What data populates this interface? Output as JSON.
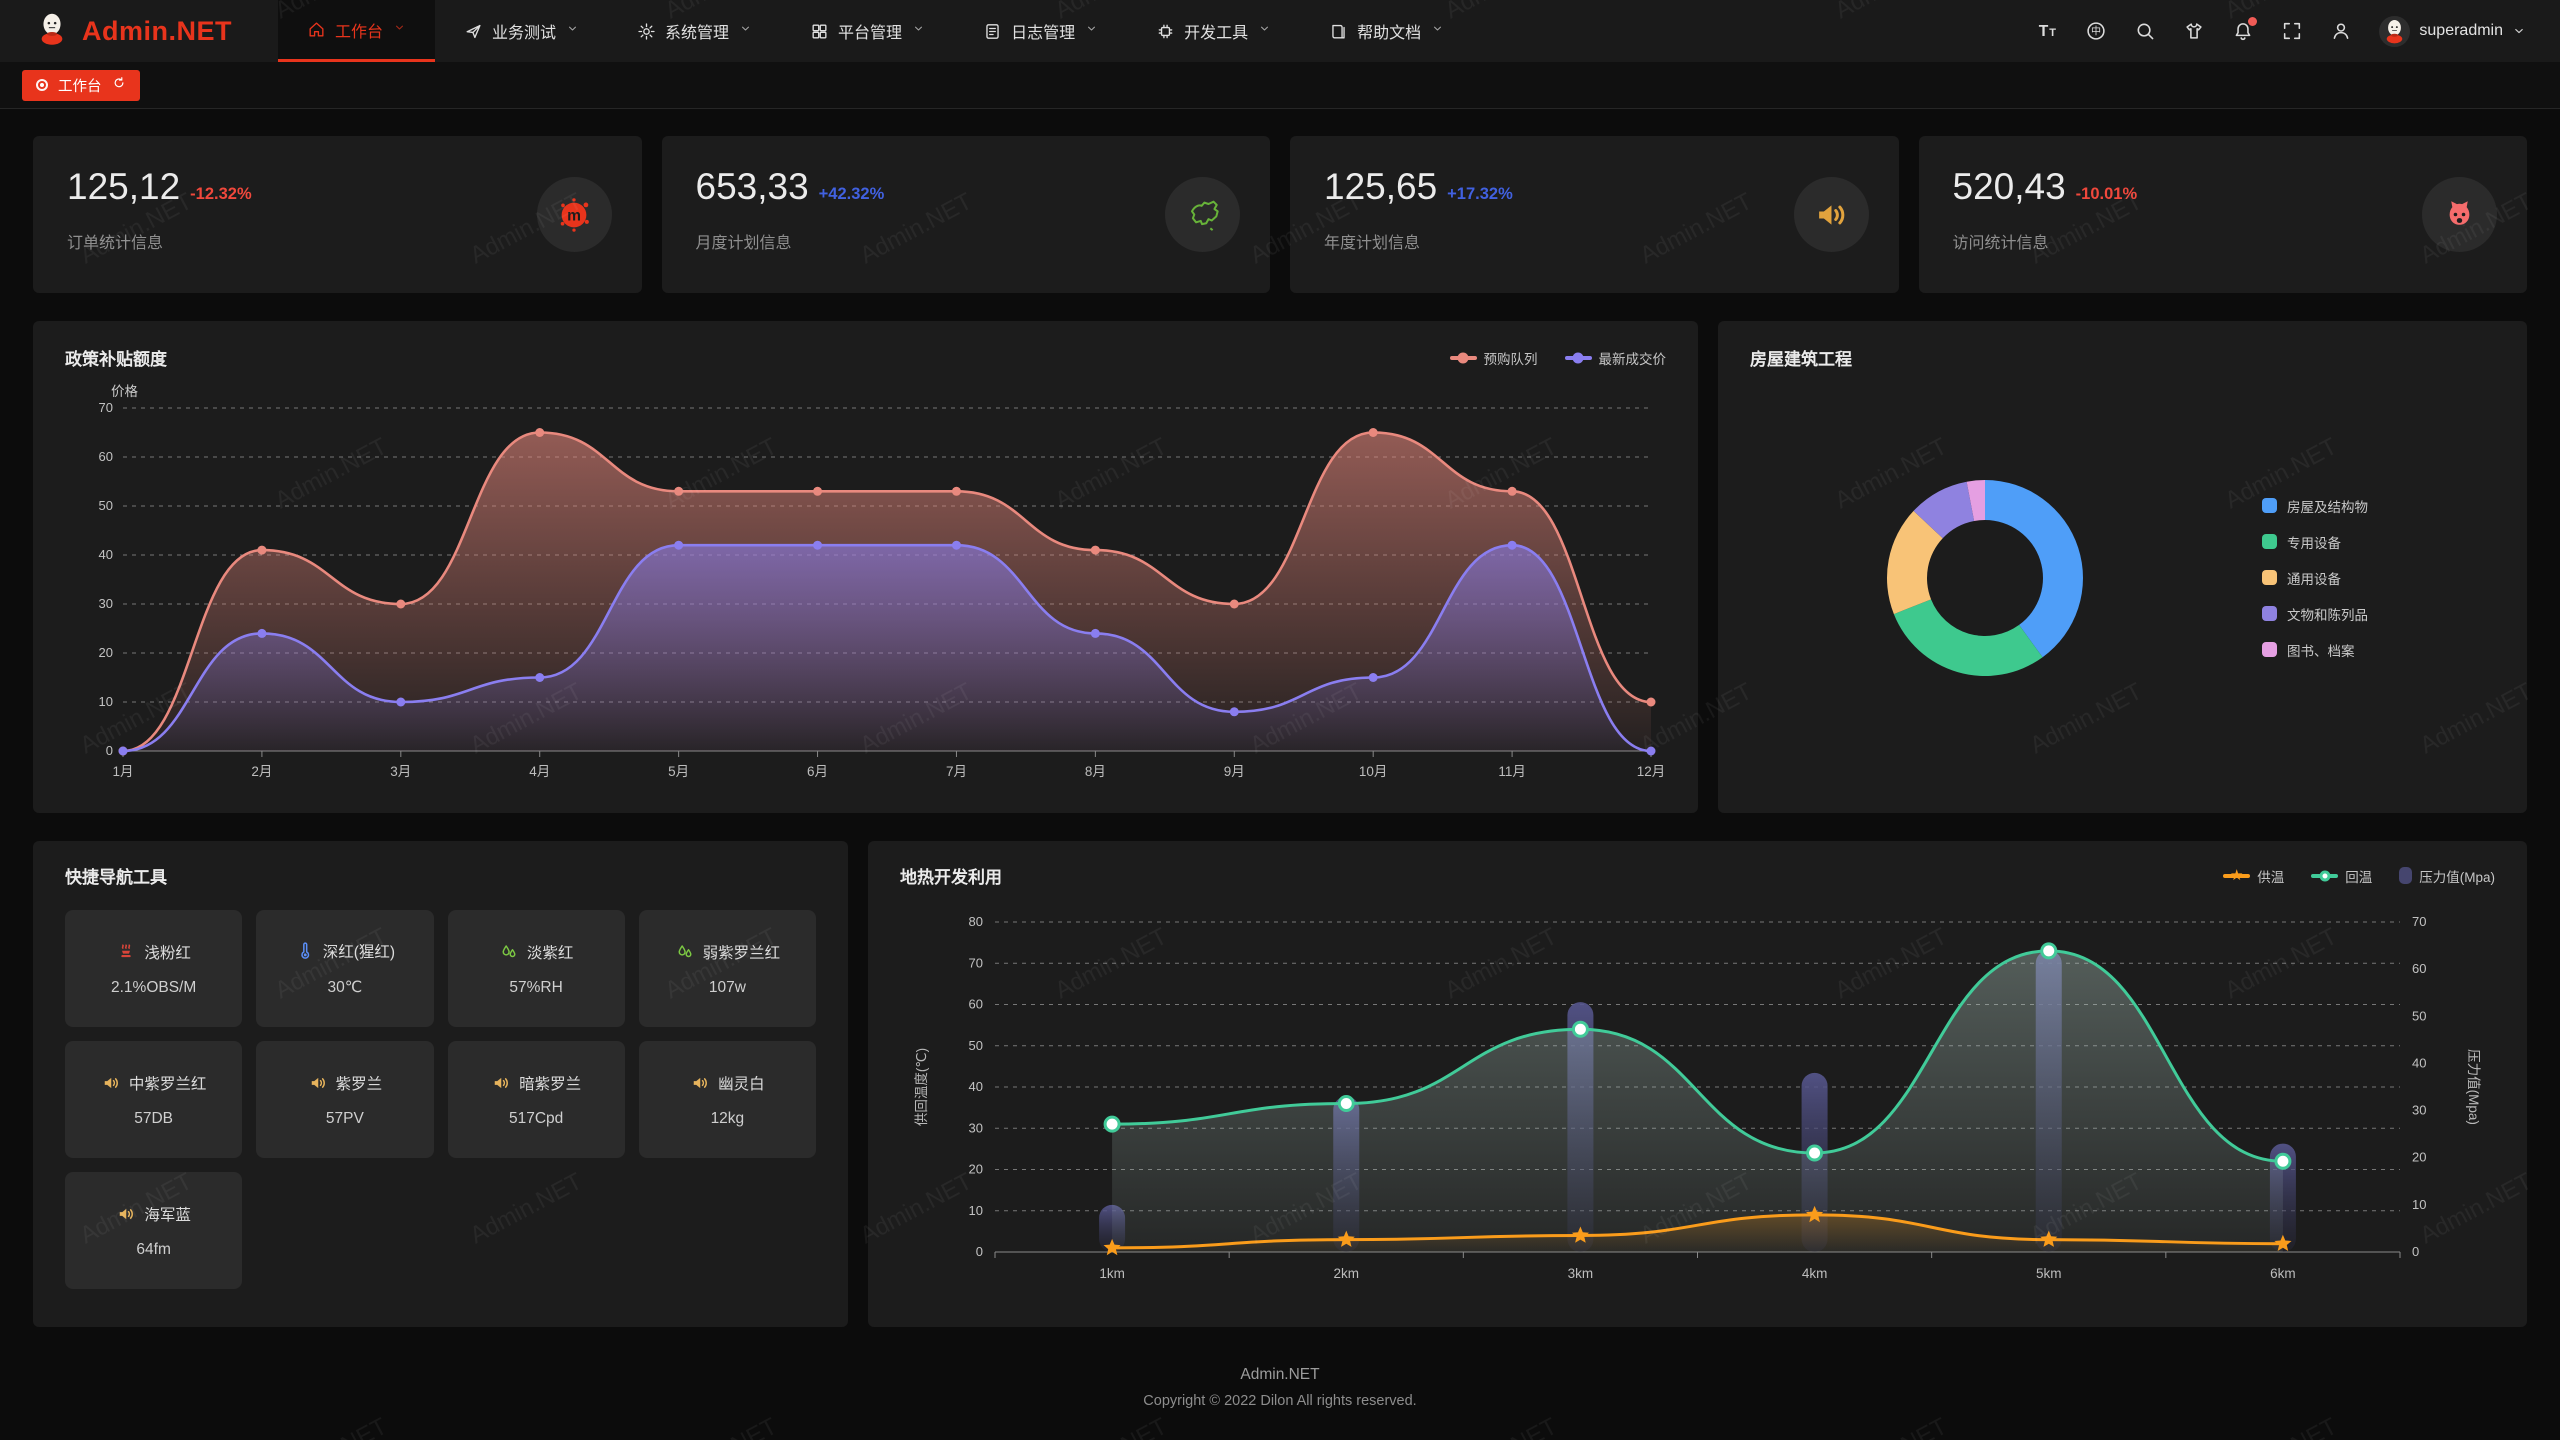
{
  "header": {
    "brand": "Admin.NET",
    "menu": [
      {
        "label": "工作台",
        "icon": "home",
        "active": true
      },
      {
        "label": "业务测试",
        "icon": "send"
      },
      {
        "label": "系统管理",
        "icon": "gear"
      },
      {
        "label": "平台管理",
        "icon": "grid"
      },
      {
        "label": "日志管理",
        "icon": "doc"
      },
      {
        "label": "开发工具",
        "icon": "chip"
      },
      {
        "label": "帮助文档",
        "icon": "book"
      }
    ],
    "tools": [
      "font-size",
      "language",
      "search",
      "theme",
      "notification",
      "fullscreen",
      "person"
    ],
    "username": "superadmin"
  },
  "tabs": [
    {
      "label": "工作台",
      "active": true
    }
  ],
  "stat_cards": [
    {
      "value": "125,12",
      "delta": "-12.32%",
      "delta_color": "#f0483c",
      "label": "订单统计信息",
      "icon": "splat-m-icon",
      "icon_color": "#e8341c"
    },
    {
      "value": "653,33",
      "delta": "+42.32%",
      "delta_color": "#4161e0",
      "label": "月度计划信息",
      "icon": "china-map-icon",
      "icon_color": "#67b339"
    },
    {
      "value": "125,65",
      "delta": "+17.32%",
      "delta_color": "#4161e0",
      "label": "年度计划信息",
      "icon": "speaker-icon",
      "icon_color": "#e2a33d"
    },
    {
      "value": "520,43",
      "delta": "-10.01%",
      "delta_color": "#f0483c",
      "label": "访问统计信息",
      "icon": "cat-icon",
      "icon_color": "#f56c6c"
    }
  ],
  "chart_data": [
    {
      "type": "area",
      "title": "政策补贴额度",
      "ylabel": "价格",
      "ylim": [
        0,
        70
      ],
      "y_ticks": [
        0,
        10,
        20,
        30,
        40,
        50,
        60,
        70
      ],
      "grid": "dashed-horizontal",
      "legend_position": "top-right",
      "categories": [
        "1月",
        "2月",
        "3月",
        "4月",
        "5月",
        "6月",
        "7月",
        "8月",
        "9月",
        "10月",
        "11月",
        "12月"
      ],
      "series": [
        {
          "name": "预购队列",
          "color": "#e9897e",
          "values": [
            0,
            41,
            30,
            65,
            53,
            53,
            53,
            41,
            30,
            65,
            53,
            10
          ]
        },
        {
          "name": "最新成交价",
          "color": "#8a7ef0",
          "values": [
            0,
            24,
            10,
            15,
            42,
            42,
            42,
            24,
            8,
            15,
            42,
            0
          ]
        }
      ]
    },
    {
      "type": "pie",
      "title": "房屋建筑工程",
      "donut": true,
      "legend_position": "right",
      "slices": [
        {
          "name": "房屋及结构物",
          "value": 40,
          "color": "#4f9ef8"
        },
        {
          "name": "专用设备",
          "value": 29,
          "color": "#3ec98e"
        },
        {
          "name": "通用设备",
          "value": 18,
          "color": "#f8c377"
        },
        {
          "name": "文物和陈列品",
          "value": 10,
          "color": "#8f82e0"
        },
        {
          "name": "图书、档案",
          "value": 3,
          "color": "#e59fe2"
        }
      ]
    },
    {
      "type": "mixed-line-bar",
      "title": "地热开发利用",
      "categories": [
        "1km",
        "2km",
        "3km",
        "4km",
        "5km",
        "6km"
      ],
      "ylabel_left": "供回温度(℃)",
      "ylabel_right": "压力值(Mpa)",
      "ylim_left": [
        0,
        80
      ],
      "ylim_right": [
        0,
        70
      ],
      "grid": "dashed-horizontal",
      "legend_position": "top-right",
      "series": [
        {
          "name": "供温",
          "type": "line",
          "marker": "star",
          "axis": "left",
          "color": "#fa9c1b",
          "values": [
            1,
            3,
            4,
            9,
            3,
            2
          ]
        },
        {
          "name": "回温",
          "type": "line",
          "marker": "circle",
          "axis": "left",
          "color": "#41cb99",
          "values": [
            31,
            36,
            54,
            24,
            73,
            22
          ]
        },
        {
          "name": "压力值(Mpa)",
          "type": "bar",
          "axis": "right",
          "color": "#45456e",
          "values": [
            10,
            33,
            53,
            38,
            64,
            23
          ]
        }
      ]
    }
  ],
  "nav_tools": {
    "title": "快捷导航工具",
    "items": [
      {
        "label": "浅粉红",
        "value": "2.1%OBS/M",
        "icon": "heat-icon",
        "icon_color": "#d9453a"
      },
      {
        "label": "深红(猩红)",
        "value": "30℃",
        "icon": "thermometer-icon",
        "icon_color": "#5b8ff9"
      },
      {
        "label": "淡紫红",
        "value": "57%RH",
        "icon": "water-drops-icon",
        "icon_color": "#7cc843"
      },
      {
        "label": "弱紫罗兰红",
        "value": "107w",
        "icon": "water-drops-icon",
        "icon_color": "#7cc843"
      },
      {
        "label": "中紫罗兰红",
        "value": "57DB",
        "icon": "speaker-icon",
        "icon_color": "#e6b35c"
      },
      {
        "label": "紫罗兰",
        "value": "57PV",
        "icon": "speaker-icon",
        "icon_color": "#e6b35c"
      },
      {
        "label": "暗紫罗兰",
        "value": "517Cpd",
        "icon": "speaker-icon",
        "icon_color": "#e6b35c"
      },
      {
        "label": "幽灵白",
        "value": "12kg",
        "icon": "speaker-icon",
        "icon_color": "#e6b35c"
      },
      {
        "label": "海军蓝",
        "value": "64fm",
        "icon": "speaker-icon",
        "icon_color": "#e6b35c"
      }
    ]
  },
  "footer": {
    "line1": "Admin.NET",
    "line2": "Copyright © 2022 Dilon All rights reserved."
  },
  "watermark": "Admin.NET"
}
